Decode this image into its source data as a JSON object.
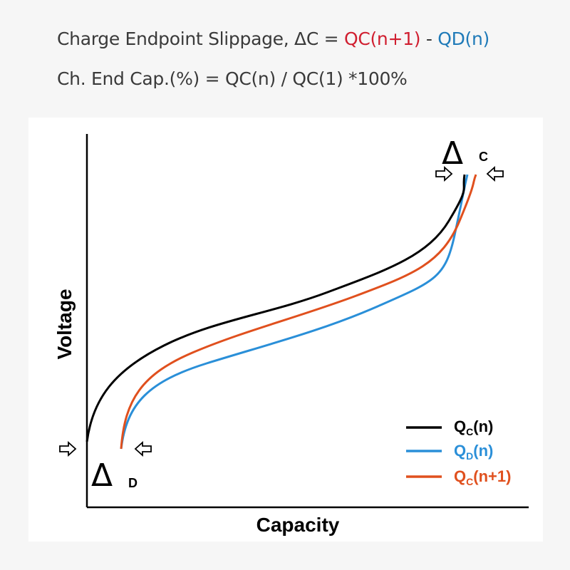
{
  "formulas": {
    "line1_prefix": "Charge Endpoint Slippage, ΔC  = ",
    "line1_red": "QC(n+1)",
    "line1_sep": " - ",
    "line1_blue": "QD(n)",
    "line2": "Ch. End Cap.(%) = QC(n) / QC(1) *100%"
  },
  "diagram": {
    "y_label": "Voltage",
    "x_label": "Capacity",
    "delta_c": {
      "symbol": "Δ",
      "sub": "C"
    },
    "delta_d": {
      "symbol": "Δ",
      "sub": "D"
    },
    "legend": [
      {
        "q": "Q",
        "sub": "C",
        "rest": "(n)",
        "color": "#000000"
      },
      {
        "q": "Q",
        "sub": "D",
        "rest": "(n)",
        "color": "#2a8fd8"
      },
      {
        "q": "Q",
        "sub": "C",
        "rest": "(n+1)",
        "color": "#e0501e"
      }
    ]
  }
}
